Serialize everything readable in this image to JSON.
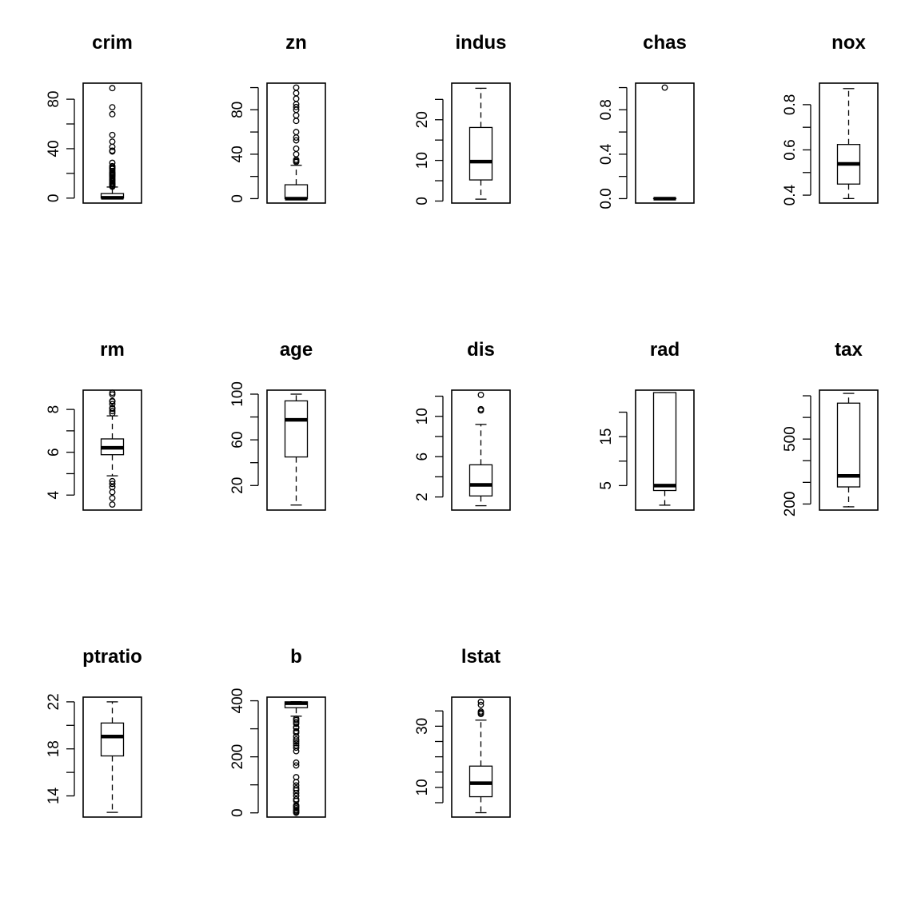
{
  "chart_data": [
    {
      "type": "box",
      "title": "crim",
      "ylim": [
        -4,
        93
      ],
      "ticks": [
        0,
        20,
        40,
        60,
        80
      ],
      "tick_labels": [
        "0",
        "",
        "40",
        "",
        "80"
      ],
      "box": {
        "min": 0.006,
        "q1": 0.08,
        "median": 0.26,
        "q3": 3.68,
        "max": 8.98
      },
      "outliers": [
        9.2,
        9.9,
        10.8,
        11.1,
        11.8,
        12.2,
        13.5,
        14.3,
        15.0,
        15.9,
        16.8,
        17.9,
        18.5,
        18.8,
        19.6,
        20.1,
        20.7,
        22.0,
        23.6,
        24.4,
        25.0,
        25.9,
        28.6,
        37.7,
        38.4,
        41.5,
        45.7,
        51.1,
        67.9,
        73.5,
        88.98
      ]
    },
    {
      "type": "box",
      "title": "zn",
      "ylim": [
        -4,
        104
      ],
      "ticks": [
        0,
        20,
        40,
        60,
        80,
        100
      ],
      "tick_labels": [
        "0",
        "",
        "40",
        "",
        "80",
        ""
      ],
      "box": {
        "min": 0,
        "q1": 0,
        "median": 0,
        "q3": 12.5,
        "max": 30
      },
      "outliers": [
        33,
        34,
        35,
        40,
        45,
        52.5,
        55,
        60,
        70,
        75,
        80,
        82.5,
        85,
        90,
        95,
        100
      ]
    },
    {
      "type": "box",
      "title": "indus",
      "ylim": [
        -0.5,
        29
      ],
      "ticks": [
        0,
        5,
        10,
        15,
        20,
        25
      ],
      "tick_labels": [
        "0",
        "",
        "10",
        "",
        "20",
        ""
      ],
      "box": {
        "min": 0.46,
        "q1": 5.19,
        "median": 9.69,
        "q3": 18.1,
        "max": 27.74
      },
      "outliers": []
    },
    {
      "type": "box",
      "title": "chas",
      "ylim": [
        -0.04,
        1.04
      ],
      "ticks": [
        0,
        0.2,
        0.4,
        0.6,
        0.8,
        1.0
      ],
      "tick_labels": [
        "0.0",
        "",
        "0.4",
        "",
        "0.8",
        ""
      ],
      "box": {
        "min": 0,
        "q1": 0,
        "median": 0,
        "q3": 0,
        "max": 0
      },
      "outliers": [
        1
      ]
    },
    {
      "type": "box",
      "title": "nox",
      "ylim": [
        0.365,
        0.895
      ],
      "ticks": [
        0.4,
        0.5,
        0.6,
        0.7,
        0.8
      ],
      "tick_labels": [
        "0.4",
        "",
        "0.6",
        "",
        "0.8"
      ],
      "box": {
        "min": 0.385,
        "q1": 0.449,
        "median": 0.538,
        "q3": 0.624,
        "max": 0.871
      },
      "outliers": []
    },
    {
      "type": "box",
      "title": "rm",
      "ylim": [
        3.3,
        8.9
      ],
      "ticks": [
        4,
        5,
        6,
        7,
        8
      ],
      "tick_labels": [
        "4",
        "",
        "6",
        "",
        "8"
      ],
      "box": {
        "min": 4.9,
        "q1": 5.886,
        "median": 6.208,
        "q3": 6.623,
        "max": 7.7
      },
      "outliers": [
        3.56,
        3.86,
        4.14,
        4.37,
        4.52,
        4.65,
        7.82,
        7.92,
        8.03,
        8.07,
        8.25,
        8.37,
        8.4,
        8.7,
        8.78
      ]
    },
    {
      "type": "box",
      "title": "age",
      "ylim": [
        -1.5,
        103.5
      ],
      "ticks": [
        20,
        40,
        60,
        80,
        100
      ],
      "tick_labels": [
        "20",
        "",
        "60",
        "",
        "100"
      ],
      "box": {
        "min": 2.9,
        "q1": 45.0,
        "median": 77.5,
        "q3": 94.1,
        "max": 100
      },
      "outliers": []
    },
    {
      "type": "box",
      "title": "dis",
      "ylim": [
        0.7,
        12.6
      ],
      "ticks": [
        2,
        4,
        6,
        8,
        10,
        12
      ],
      "tick_labels": [
        "2",
        "",
        "6",
        "",
        "10",
        ""
      ],
      "box": {
        "min": 1.13,
        "q1": 2.1,
        "median": 3.2,
        "q3": 5.19,
        "max": 9.2
      },
      "outliers": [
        10.59,
        10.71,
        12.13
      ]
    },
    {
      "type": "box",
      "title": "rad",
      "ylim": [
        0,
        24.5
      ],
      "ticks": [
        5,
        10,
        15,
        20
      ],
      "tick_labels": [
        "5",
        "",
        "15",
        ""
      ],
      "box": {
        "min": 1,
        "q1": 4,
        "median": 5,
        "q3": 24,
        "max": 24
      },
      "outliers": []
    },
    {
      "type": "box",
      "title": "tax",
      "ylim": [
        172,
        726
      ],
      "ticks": [
        200,
        300,
        400,
        500,
        600,
        700
      ],
      "tick_labels": [
        "200",
        "",
        "",
        "500",
        "",
        ""
      ],
      "box": {
        "min": 187,
        "q1": 279,
        "median": 330,
        "q3": 666,
        "max": 711
      },
      "outliers": []
    },
    {
      "type": "box",
      "title": "ptratio",
      "ylim": [
        12.2,
        22.4
      ],
      "ticks": [
        14,
        16,
        18,
        20,
        22
      ],
      "tick_labels": [
        "14",
        "",
        "18",
        "",
        "22"
      ],
      "box": {
        "min": 12.6,
        "q1": 17.4,
        "median": 19.05,
        "q3": 20.2,
        "max": 22.0
      },
      "outliers": []
    },
    {
      "type": "box",
      "title": "b",
      "ylim": [
        -15,
        413
      ],
      "ticks": [
        0,
        100,
        200,
        300,
        400
      ],
      "tick_labels": [
        "0",
        "",
        "200",
        "",
        "400"
      ],
      "box": {
        "min": 345,
        "q1": 375.4,
        "median": 391.4,
        "q3": 396.2,
        "max": 396.9
      },
      "outliers": [
        0.3,
        3.5,
        7.7,
        10.5,
        16.5,
        21.6,
        24.7,
        27.3,
        43.1,
        48.5,
        60.7,
        70.8,
        81.3,
        88.0,
        97.9,
        109.9,
        127.4,
        169.3,
        179.4,
        220.1,
        232.6,
        240.2,
        248.3,
        255.2,
        261.9,
        272.2,
        285.8,
        291.6,
        302.8,
        306.4,
        318.4,
        324.4,
        331.3,
        336.2
      ]
    },
    {
      "type": "box",
      "title": "lstat",
      "ylim": [
        0.3,
        39.5
      ],
      "ticks": [
        5,
        10,
        15,
        20,
        25,
        30,
        35
      ],
      "tick_labels": [
        "",
        "10",
        "",
        "",
        "",
        "30",
        ""
      ],
      "box": {
        "min": 1.73,
        "q1": 6.95,
        "median": 11.36,
        "q3": 16.96,
        "max": 31.99
      },
      "outliers": [
        34.0,
        34.4,
        34.8,
        36.98,
        37.97
      ]
    }
  ]
}
